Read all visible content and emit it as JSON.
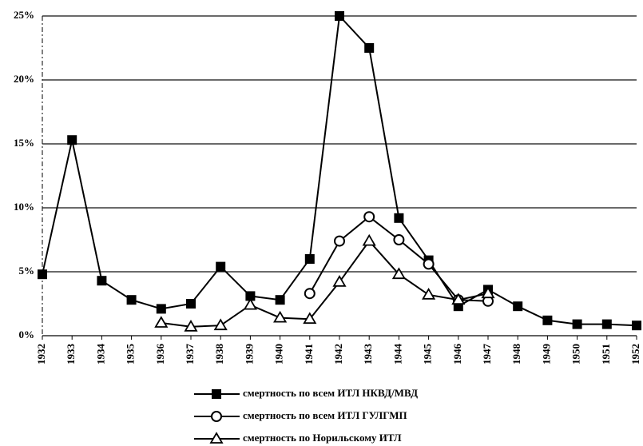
{
  "chart_data": {
    "type": "line",
    "categories": [
      "1932",
      "1933",
      "1934",
      "1935",
      "1936",
      "1937",
      "1938",
      "1939",
      "1940",
      "1941",
      "1942",
      "1943",
      "1944",
      "1945",
      "1946",
      "1947",
      "1948",
      "1949",
      "1950",
      "1951",
      "1952"
    ],
    "series": [
      {
        "name": "смертность по всем ИТЛ НКВД/МВД",
        "color": "#000000",
        "marker": "square",
        "values": [
          4.8,
          15.3,
          4.3,
          2.8,
          2.1,
          2.5,
          5.4,
          3.1,
          2.8,
          6.0,
          25.0,
          22.5,
          9.2,
          5.9,
          2.3,
          3.6,
          2.3,
          1.2,
          0.9,
          0.9,
          0.8
        ]
      },
      {
        "name": "смертность по всем ИТЛ ГУЛГМП",
        "color": "#000000",
        "marker": "circle",
        "values": [
          null,
          null,
          null,
          null,
          null,
          null,
          null,
          null,
          null,
          3.3,
          7.4,
          9.3,
          7.5,
          5.6,
          2.8,
          2.7,
          null,
          null,
          null,
          null,
          null
        ]
      },
      {
        "name": "смертность по Норильскому ИТЛ",
        "color": "#000000",
        "marker": "triangle",
        "values": [
          null,
          null,
          null,
          null,
          1.0,
          0.7,
          0.8,
          2.4,
          1.4,
          1.3,
          4.2,
          7.4,
          4.8,
          3.2,
          2.8,
          3.3,
          null,
          null,
          null,
          null,
          null
        ]
      }
    ],
    "ylim": [
      0,
      25
    ],
    "yticks": [
      {
        "value": 0,
        "label": "0%"
      },
      {
        "value": 5,
        "label": "5%"
      },
      {
        "value": 10,
        "label": "10%"
      },
      {
        "value": 15,
        "label": "15%"
      },
      {
        "value": 20,
        "label": "20%"
      },
      {
        "value": 25,
        "label": "25%"
      }
    ],
    "grid": true
  }
}
